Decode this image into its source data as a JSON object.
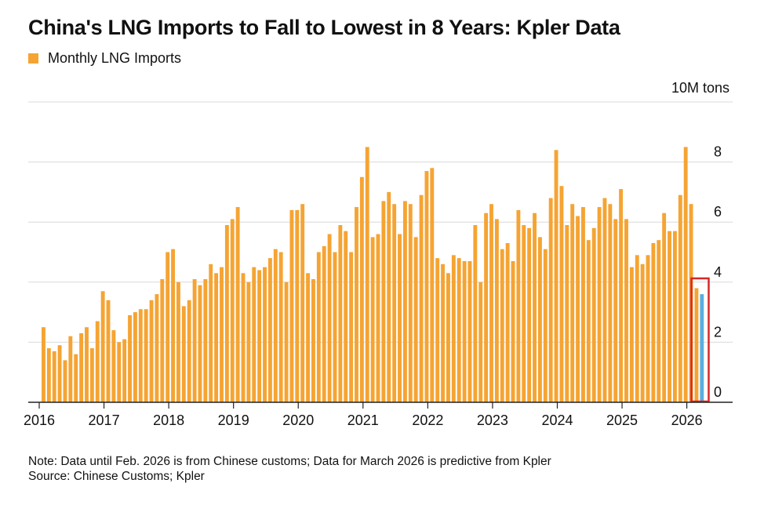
{
  "chart_data": {
    "type": "bar",
    "title": "China's LNG Imports to Fall to Lowest in 8 Years: Kpler Data",
    "legend": [
      "Monthly LNG Imports"
    ],
    "unit_label": "10M tons",
    "xlabel": "",
    "ylabel": "",
    "ylim": [
      0,
      10
    ],
    "yticks": [
      0,
      2,
      4,
      6,
      8
    ],
    "xticks": [
      "2016",
      "2017",
      "2018",
      "2019",
      "2020",
      "2021",
      "2022",
      "2023",
      "2024",
      "2025",
      "2026"
    ],
    "grid": true,
    "legend_position": "top-left",
    "colors": {
      "actual": "#f5a433",
      "predicted": "#5aaee0",
      "highlight": "#d62828"
    },
    "series": [
      {
        "name": "Monthly LNG Imports",
        "start": "2016-01",
        "values": [
          2.5,
          1.8,
          1.7,
          1.9,
          1.4,
          2.2,
          1.6,
          2.3,
          2.5,
          1.8,
          2.7,
          3.7,
          3.4,
          2.4,
          2.0,
          2.1,
          2.9,
          3.0,
          3.1,
          3.1,
          3.4,
          3.6,
          4.1,
          5.0,
          5.1,
          4.0,
          3.2,
          3.4,
          4.1,
          3.9,
          4.1,
          4.6,
          4.3,
          4.5,
          5.9,
          6.1,
          6.5,
          4.3,
          4.0,
          4.5,
          4.4,
          4.5,
          4.8,
          5.1,
          5.0,
          4.0,
          6.4,
          6.4,
          6.6,
          4.3,
          4.1,
          5.0,
          5.2,
          5.6,
          5.0,
          5.9,
          5.7,
          5.0,
          6.5,
          7.5,
          8.5,
          5.5,
          5.6,
          6.7,
          7.0,
          6.6,
          5.6,
          6.7,
          6.6,
          5.5,
          6.9,
          7.7,
          7.8,
          4.8,
          4.6,
          4.3,
          4.9,
          4.8,
          4.7,
          4.7,
          5.9,
          4.0,
          6.3,
          6.6,
          6.1,
          5.1,
          5.3,
          4.7,
          6.4,
          5.9,
          5.8,
          6.3,
          5.5,
          5.1,
          6.8,
          8.4,
          7.2,
          5.9,
          6.6,
          6.2,
          6.5,
          5.4,
          5.8,
          6.5,
          6.8,
          6.6,
          6.1,
          7.1,
          6.1,
          4.5,
          4.9,
          4.6,
          4.9,
          5.3,
          5.4,
          6.3,
          5.7,
          5.7,
          6.9,
          8.5,
          6.6,
          3.8
        ]
      },
      {
        "name": "Kpler predictive",
        "month": "2026-03",
        "value": 3.6
      }
    ],
    "notes": [
      "Note: Data until Feb. 2026 is from Chinese customs; Data for March 2026 is predictive from Kpler",
      "Source: Chinese Customs; Kpler"
    ]
  }
}
